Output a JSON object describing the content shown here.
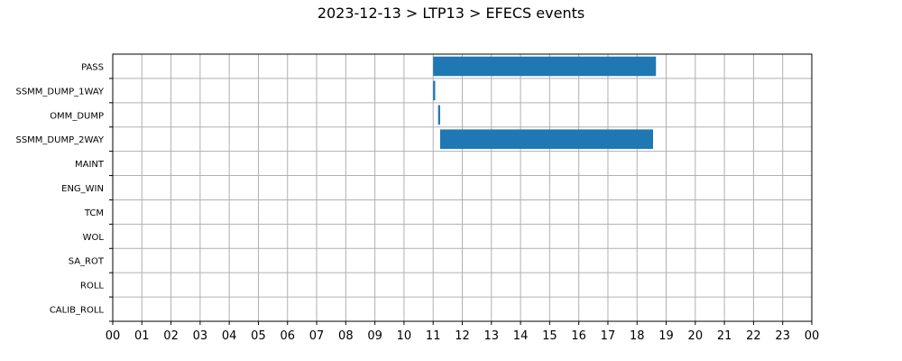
{
  "chart_data": {
    "type": "gantt",
    "title": "2023-12-13 > LTP13 > EFECS events",
    "xlabel": "",
    "ylabel": "",
    "xlim": [
      0,
      24
    ],
    "x_unit": "hour of day",
    "x_tick_labels": [
      "00",
      "01",
      "02",
      "03",
      "04",
      "05",
      "06",
      "07",
      "08",
      "09",
      "10",
      "11",
      "12",
      "13",
      "14",
      "15",
      "16",
      "17",
      "18",
      "19",
      "20",
      "21",
      "22",
      "23",
      "00"
    ],
    "categories": [
      "PASS",
      "SSMM_DUMP_1WAY",
      "OMM_DUMP",
      "SSMM_DUMP_2WAY",
      "MAINT",
      "ENG_WIN",
      "TCM",
      "WOL",
      "SA_ROT",
      "ROLL",
      "CALIB_ROLL"
    ],
    "intervals": [
      {
        "category": "PASS",
        "start": 11.0,
        "end": 18.65
      },
      {
        "category": "SSMM_DUMP_1WAY",
        "start": 11.0,
        "end": 11.07
      },
      {
        "category": "OMM_DUMP",
        "start": 11.17,
        "end": 11.24
      },
      {
        "category": "SSMM_DUMP_2WAY",
        "start": 11.24,
        "end": 18.55
      }
    ],
    "grid": true,
    "bar_color": "#1f77b4"
  }
}
